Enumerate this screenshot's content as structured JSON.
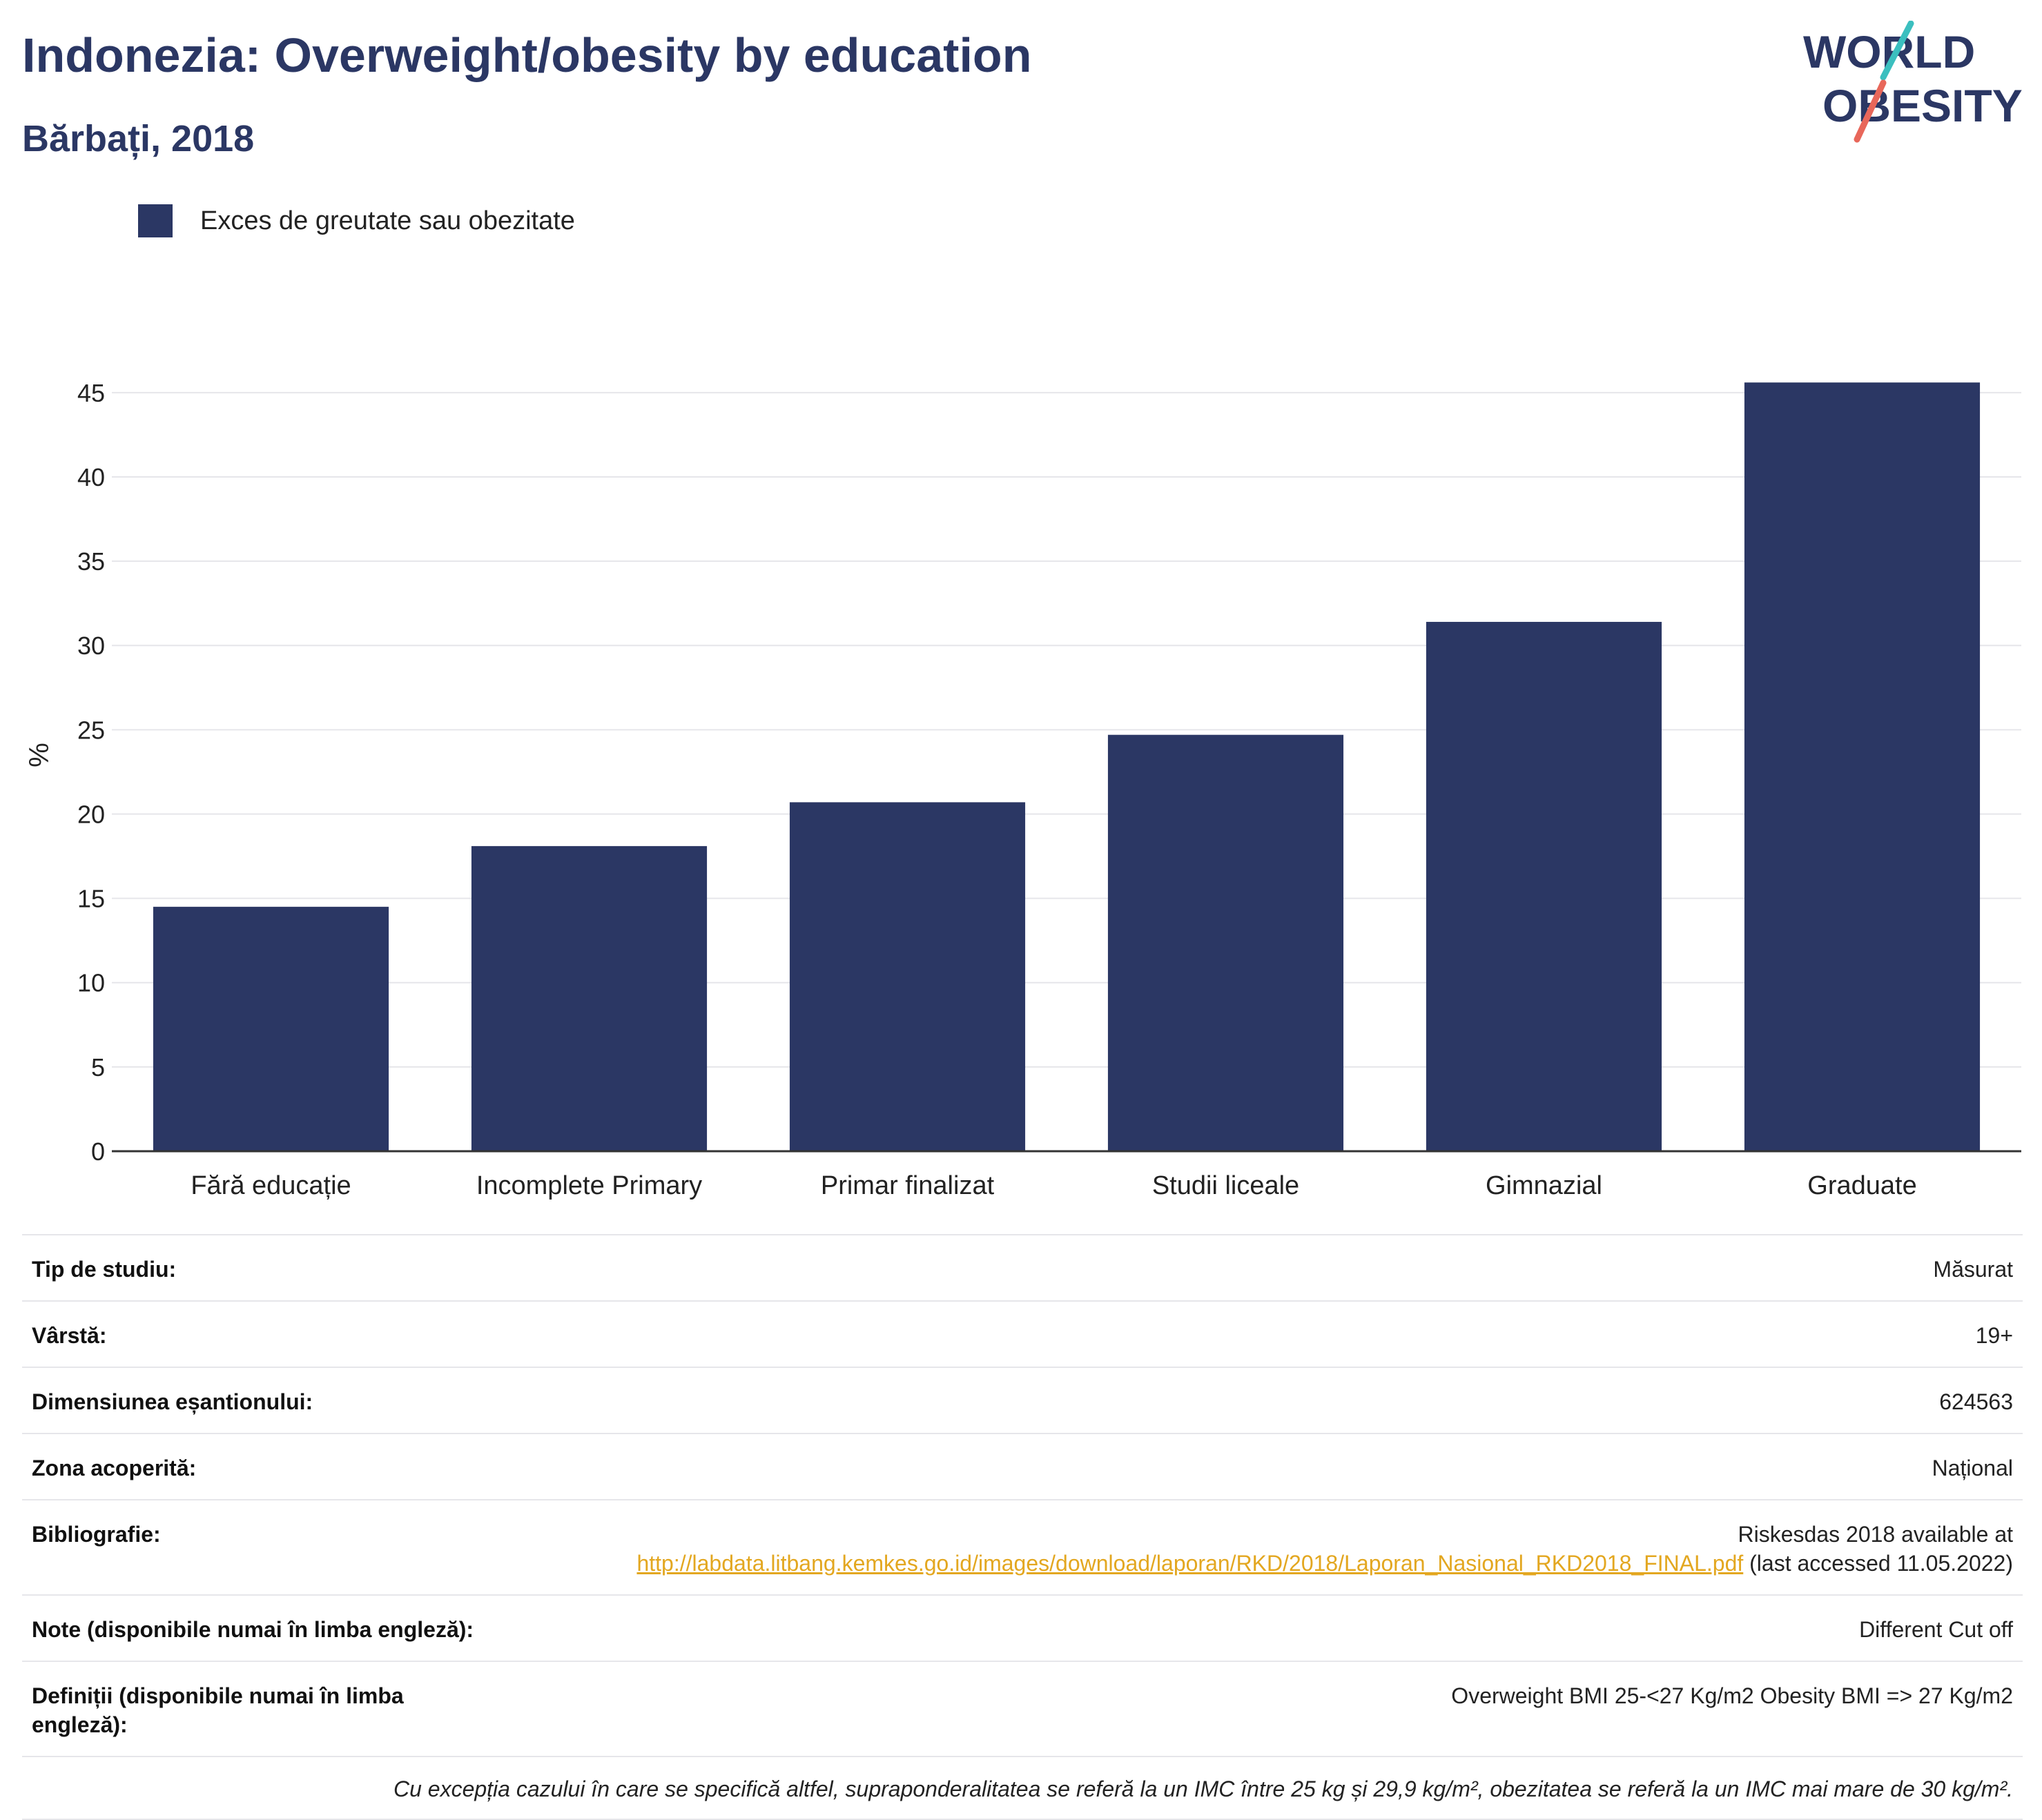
{
  "header": {
    "title": "Indonezia: Overweight/obesity by education",
    "subtitle": "Bărbați, 2018"
  },
  "logo": {
    "line1": "WORLD",
    "line2": "OBESITY"
  },
  "legend": {
    "label": "Exces de greutate sau obezitate"
  },
  "colors": {
    "bar": "#2b3764",
    "title": "#2b3764",
    "logo_teal": "#3bbfbf",
    "logo_red": "#e8675a",
    "link": "#e3a720"
  },
  "chart_data": {
    "type": "bar",
    "categories": [
      "Fără educație",
      "Incomplete Primary",
      "Primar finalizat",
      "Studii liceale",
      "Gimnazial",
      "Graduate"
    ],
    "series": [
      {
        "name": "Exces de greutate sau obezitate",
        "values": [
          14.5,
          18.1,
          20.7,
          24.7,
          31.4,
          45.6
        ]
      }
    ],
    "ylabel": "%",
    "ylim": [
      0,
      47
    ],
    "yticks": [
      0,
      5,
      10,
      15,
      20,
      25,
      30,
      35,
      40,
      45
    ],
    "grid": true,
    "legend_position": "top-left"
  },
  "meta": {
    "rows": [
      {
        "label": "Tip de studiu:",
        "value": "Măsurat"
      },
      {
        "label": "Vârstă:",
        "value": "19+"
      },
      {
        "label": "Dimensiunea eșantionului:",
        "value": "624563"
      },
      {
        "label": "Zona acoperită:",
        "value": "Național"
      }
    ],
    "bibliography": {
      "label": "Bibliografie:",
      "prefix": "Riskesdas 2018 available at",
      "link": "http://labdata.litbang.kemkes.go.id/images/download/laporan/RKD/2018/Laporan_Nasional_RKD2018_FINAL.pdf",
      "suffix": "(last accessed 11.05.2022)"
    },
    "notes": {
      "label": "Note (disponibile numai în limba engleză):",
      "value": "Different Cut off"
    },
    "definitions": {
      "label": "Definiții (disponibile numai în limba engleză):",
      "value": "Overweight BMI 25-<27 Kg/m2 Obesity BMI => 27 Kg/m2"
    },
    "footnote": "Cu excepția cazului în care se specifică altfel, supraponderalitatea se referă la un IMC între 25 kg și 29,9 kg/m², obezitatea se referă la un IMC mai mare de 30 kg/m²."
  }
}
